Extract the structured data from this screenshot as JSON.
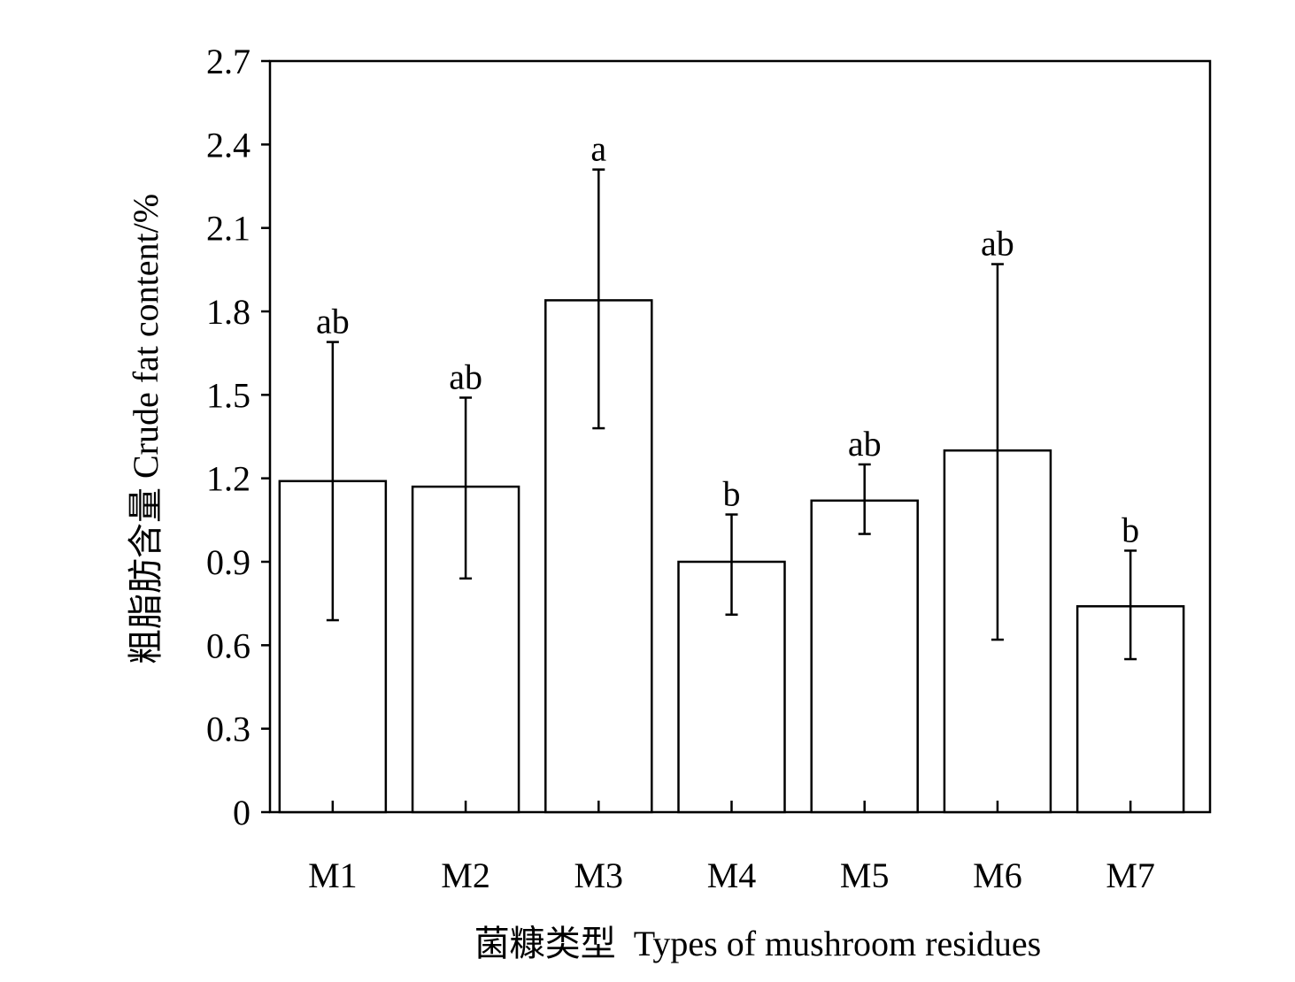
{
  "chart_data": {
    "type": "bar",
    "categories": [
      "M1",
      "M2",
      "M3",
      "M4",
      "M5",
      "M6",
      "M7"
    ],
    "values": [
      1.19,
      1.17,
      1.84,
      0.9,
      1.12,
      1.3,
      0.74
    ],
    "error_upper": [
      1.69,
      1.49,
      2.31,
      1.07,
      1.25,
      1.97,
      0.94
    ],
    "error_lower": [
      0.69,
      0.84,
      1.38,
      0.71,
      1.0,
      0.62,
      0.55
    ],
    "significance_labels": [
      "ab",
      "ab",
      "a",
      "b",
      "ab",
      "ab",
      "b"
    ],
    "xlabel": "菌糠类型  Types of mushroom residues",
    "ylabel": "粗脂肪含量  Crude fat content/%",
    "ylim": [
      0,
      2.7
    ],
    "yticks": [
      "0",
      "0.3",
      "0.6",
      "0.9",
      "1.2",
      "1.5",
      "1.8",
      "2.1",
      "2.4",
      "2.7"
    ],
    "grid": false,
    "bar_fill": "#ffffff",
    "bar_stroke": "#000000"
  }
}
